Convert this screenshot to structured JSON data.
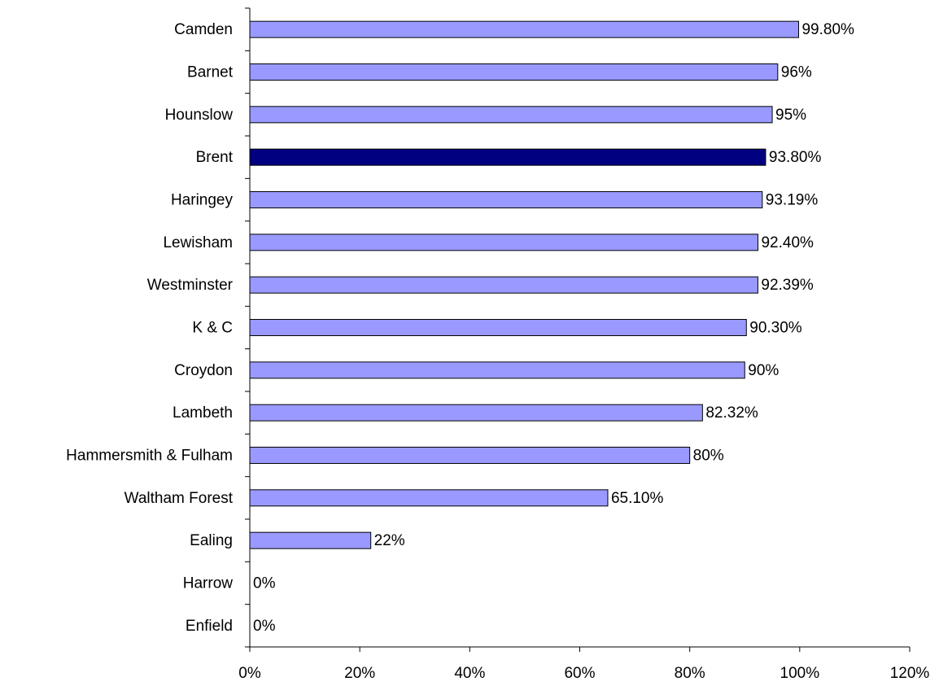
{
  "chart_data": {
    "type": "bar",
    "orientation": "horizontal",
    "categories": [
      "Camden",
      "Barnet",
      "Hounslow",
      "Brent",
      "Haringey",
      "Lewisham",
      "Westminster",
      "K & C",
      "Croydon",
      "Lambeth",
      "Hammersmith & Fulham",
      "Waltham Forest",
      "Ealing",
      "Harrow",
      "Enfield"
    ],
    "values": [
      99.8,
      96,
      95,
      93.8,
      93.19,
      92.4,
      92.39,
      90.3,
      90,
      82.32,
      80,
      65.1,
      22,
      0,
      0
    ],
    "value_labels": [
      "99.80%",
      "96%",
      "95%",
      "93.80%",
      "93.19%",
      "92.40%",
      "92.39%",
      "90.30%",
      "90%",
      "82.32%",
      "80%",
      "65.10%",
      "22%",
      "0%",
      "0%"
    ],
    "colors": [
      "#9999ff",
      "#9999ff",
      "#9999ff",
      "#000080",
      "#9999ff",
      "#9999ff",
      "#9999ff",
      "#9999ff",
      "#9999ff",
      "#9999ff",
      "#9999ff",
      "#9999ff",
      "#9999ff",
      "#9999ff",
      "#9999ff"
    ],
    "xlim": [
      0,
      120
    ],
    "xticks": [
      {
        "value": 0,
        "label": "0%"
      },
      {
        "value": 20,
        "label": "20%"
      },
      {
        "value": 40,
        "label": "40%"
      },
      {
        "value": 60,
        "label": "60%"
      },
      {
        "value": 80,
        "label": "80%"
      },
      {
        "value": 100,
        "label": "100%"
      },
      {
        "value": 120,
        "label": "120%"
      }
    ],
    "grid": false
  }
}
